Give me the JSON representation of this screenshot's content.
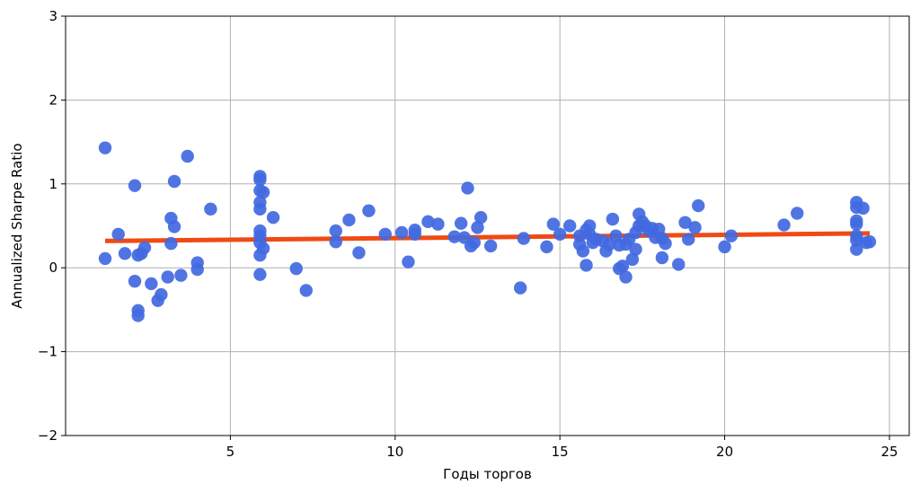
{
  "chart_data": {
    "type": "scatter",
    "title": "",
    "xlabel": "Годы торгов",
    "ylabel": "Annualized Sharpe Ratio",
    "xlim": [
      0.0,
      25.6
    ],
    "ylim": [
      -2,
      3
    ],
    "xticks": [
      5,
      10,
      15,
      20,
      25
    ],
    "yticks": [
      -2,
      -1,
      0,
      1,
      2,
      3
    ],
    "xtick_labels": [
      "5",
      "10",
      "15",
      "20",
      "25"
    ],
    "ytick_labels": [
      "−2",
      "−1",
      "0",
      "1",
      "2",
      "3"
    ],
    "grid": true,
    "colors": {
      "points": "#4169e1",
      "trend": "#f04a14",
      "grid": "#b0b0b0",
      "axes": "#000000"
    },
    "trend_line": {
      "x": [
        1.2,
        24.4
      ],
      "y": [
        0.32,
        0.41
      ]
    },
    "points": [
      {
        "x": 1.2,
        "y": 1.43
      },
      {
        "x": 1.2,
        "y": 0.11
      },
      {
        "x": 1.6,
        "y": 0.4
      },
      {
        "x": 1.8,
        "y": 0.17
      },
      {
        "x": 2.1,
        "y": 0.98
      },
      {
        "x": 2.1,
        "y": -0.16
      },
      {
        "x": 2.2,
        "y": 0.15
      },
      {
        "x": 2.2,
        "y": -0.51
      },
      {
        "x": 2.2,
        "y": -0.57
      },
      {
        "x": 2.3,
        "y": 0.17
      },
      {
        "x": 2.4,
        "y": 0.24
      },
      {
        "x": 2.6,
        "y": -0.19
      },
      {
        "x": 2.8,
        "y": -0.39
      },
      {
        "x": 2.9,
        "y": -0.32
      },
      {
        "x": 3.1,
        "y": -0.11
      },
      {
        "x": 3.2,
        "y": 0.59
      },
      {
        "x": 3.2,
        "y": 0.29
      },
      {
        "x": 3.3,
        "y": 1.03
      },
      {
        "x": 3.3,
        "y": 0.49
      },
      {
        "x": 3.5,
        "y": -0.09
      },
      {
        "x": 3.7,
        "y": 1.33
      },
      {
        "x": 4.0,
        "y": 0.06
      },
      {
        "x": 4.0,
        "y": -0.02
      },
      {
        "x": 4.4,
        "y": 0.7
      },
      {
        "x": 5.9,
        "y": 1.09
      },
      {
        "x": 5.9,
        "y": 1.05
      },
      {
        "x": 5.9,
        "y": 0.92
      },
      {
        "x": 5.9,
        "y": 0.78
      },
      {
        "x": 5.9,
        "y": 0.7
      },
      {
        "x": 5.9,
        "y": 0.44
      },
      {
        "x": 5.9,
        "y": 0.38
      },
      {
        "x": 5.9,
        "y": 0.3
      },
      {
        "x": 5.9,
        "y": 0.15
      },
      {
        "x": 5.9,
        "y": -0.08
      },
      {
        "x": 6.0,
        "y": 0.9
      },
      {
        "x": 6.0,
        "y": 0.23
      },
      {
        "x": 6.3,
        "y": 0.6
      },
      {
        "x": 7.0,
        "y": -0.01
      },
      {
        "x": 7.3,
        "y": -0.27
      },
      {
        "x": 8.2,
        "y": 0.44
      },
      {
        "x": 8.2,
        "y": 0.31
      },
      {
        "x": 8.6,
        "y": 0.57
      },
      {
        "x": 8.9,
        "y": 0.18
      },
      {
        "x": 9.2,
        "y": 0.68
      },
      {
        "x": 9.7,
        "y": 0.4
      },
      {
        "x": 10.2,
        "y": 0.42
      },
      {
        "x": 10.4,
        "y": 0.07
      },
      {
        "x": 10.6,
        "y": 0.45
      },
      {
        "x": 10.6,
        "y": 0.4
      },
      {
        "x": 11.0,
        "y": 0.55
      },
      {
        "x": 11.3,
        "y": 0.52
      },
      {
        "x": 11.8,
        "y": 0.37
      },
      {
        "x": 12.0,
        "y": 0.53
      },
      {
        "x": 12.1,
        "y": 0.36
      },
      {
        "x": 12.2,
        "y": 0.95
      },
      {
        "x": 12.3,
        "y": 0.26
      },
      {
        "x": 12.4,
        "y": 0.3
      },
      {
        "x": 12.5,
        "y": 0.48
      },
      {
        "x": 12.6,
        "y": 0.6
      },
      {
        "x": 12.9,
        "y": 0.26
      },
      {
        "x": 13.8,
        "y": -0.24
      },
      {
        "x": 13.9,
        "y": 0.35
      },
      {
        "x": 14.6,
        "y": 0.25
      },
      {
        "x": 14.8,
        "y": 0.52
      },
      {
        "x": 15.0,
        "y": 0.4
      },
      {
        "x": 15.3,
        "y": 0.5
      },
      {
        "x": 15.6,
        "y": 0.38
      },
      {
        "x": 15.6,
        "y": 0.28
      },
      {
        "x": 15.7,
        "y": 0.2
      },
      {
        "x": 15.8,
        "y": 0.45
      },
      {
        "x": 15.8,
        "y": 0.03
      },
      {
        "x": 15.9,
        "y": 0.5
      },
      {
        "x": 15.9,
        "y": 0.4
      },
      {
        "x": 16.0,
        "y": 0.3
      },
      {
        "x": 16.1,
        "y": 0.34
      },
      {
        "x": 16.3,
        "y": 0.32
      },
      {
        "x": 16.4,
        "y": 0.2
      },
      {
        "x": 16.5,
        "y": 0.28
      },
      {
        "x": 16.6,
        "y": 0.58
      },
      {
        "x": 16.7,
        "y": 0.38
      },
      {
        "x": 16.8,
        "y": 0.27
      },
      {
        "x": 16.8,
        "y": -0.01
      },
      {
        "x": 16.9,
        "y": 0.02
      },
      {
        "x": 17.0,
        "y": 0.28
      },
      {
        "x": 17.0,
        "y": -0.11
      },
      {
        "x": 17.1,
        "y": 0.34
      },
      {
        "x": 17.2,
        "y": 0.1
      },
      {
        "x": 17.3,
        "y": 0.42
      },
      {
        "x": 17.3,
        "y": 0.22
      },
      {
        "x": 17.4,
        "y": 0.5
      },
      {
        "x": 17.4,
        "y": 0.64
      },
      {
        "x": 17.5,
        "y": 0.55
      },
      {
        "x": 17.6,
        "y": 0.5
      },
      {
        "x": 17.7,
        "y": 0.44
      },
      {
        "x": 17.8,
        "y": 0.47
      },
      {
        "x": 17.9,
        "y": 0.36
      },
      {
        "x": 18.0,
        "y": 0.46
      },
      {
        "x": 18.1,
        "y": 0.35
      },
      {
        "x": 18.1,
        "y": 0.12
      },
      {
        "x": 18.2,
        "y": 0.29
      },
      {
        "x": 18.6,
        "y": 0.04
      },
      {
        "x": 18.8,
        "y": 0.54
      },
      {
        "x": 18.9,
        "y": 0.34
      },
      {
        "x": 19.1,
        "y": 0.48
      },
      {
        "x": 19.2,
        "y": 0.74
      },
      {
        "x": 20.0,
        "y": 0.25
      },
      {
        "x": 20.2,
        "y": 0.38
      },
      {
        "x": 21.8,
        "y": 0.51
      },
      {
        "x": 22.2,
        "y": 0.65
      },
      {
        "x": 24.0,
        "y": 0.78
      },
      {
        "x": 24.0,
        "y": 0.72
      },
      {
        "x": 24.0,
        "y": 0.56
      },
      {
        "x": 24.0,
        "y": 0.52
      },
      {
        "x": 24.0,
        "y": 0.33
      },
      {
        "x": 24.0,
        "y": 0.22
      },
      {
        "x": 24.0,
        "y": 0.38
      },
      {
        "x": 24.2,
        "y": 0.71
      },
      {
        "x": 24.3,
        "y": 0.3
      },
      {
        "x": 24.4,
        "y": 0.31
      }
    ]
  }
}
